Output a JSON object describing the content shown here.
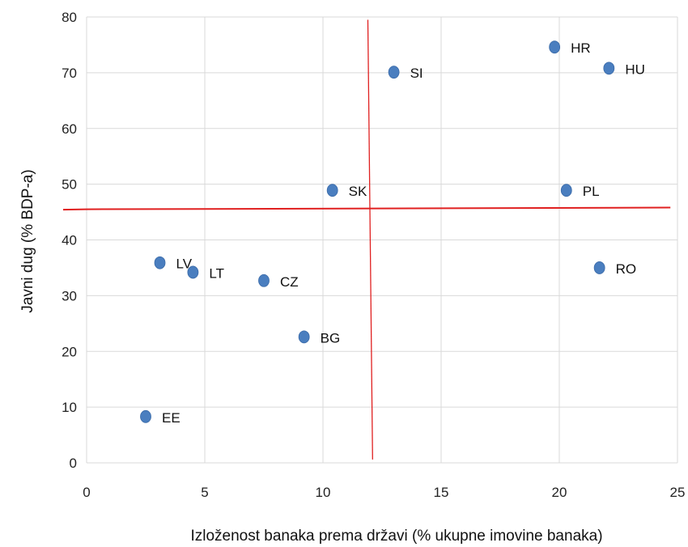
{
  "chart_data": {
    "type": "scatter",
    "title": "",
    "xlabel": "Izloženost banaka prema državi (% ukupne imovine banaka)",
    "ylabel": "Javni dug (% BDP-a)",
    "xlim": [
      0,
      25
    ],
    "ylim": [
      0,
      80
    ],
    "x_ticks": [
      "0",
      "5",
      "10",
      "15",
      "20",
      "25"
    ],
    "y_ticks": [
      "0",
      "10",
      "20",
      "30",
      "40",
      "50",
      "60",
      "70",
      "80"
    ],
    "grid": true,
    "marker_color": "#4a7ebf",
    "reference_line_color": "#e02020",
    "points": [
      {
        "label": "HR",
        "x": 19.8,
        "y": 74.6
      },
      {
        "label": "HU",
        "x": 22.1,
        "y": 70.8
      },
      {
        "label": "SI",
        "x": 13.0,
        "y": 70.1
      },
      {
        "label": "SK",
        "x": 10.4,
        "y": 48.9
      },
      {
        "label": "PL",
        "x": 20.3,
        "y": 48.9
      },
      {
        "label": "LV",
        "x": 3.1,
        "y": 35.9
      },
      {
        "label": "LT",
        "x": 4.5,
        "y": 34.2
      },
      {
        "label": "RO",
        "x": 21.7,
        "y": 35.0
      },
      {
        "label": "CZ",
        "x": 7.5,
        "y": 32.7
      },
      {
        "label": "BG",
        "x": 9.2,
        "y": 22.6
      },
      {
        "label": "EE",
        "x": 2.5,
        "y": 8.3
      }
    ],
    "reference_lines": [
      {
        "orientation": "vertical",
        "x": [
          11.9,
          12.1
        ],
        "y": [
          79.5,
          0.6
        ]
      },
      {
        "orientation": "horizontal",
        "x": [
          0,
          24.7
        ],
        "y": [
          45.5,
          45.8
        ]
      }
    ]
  }
}
